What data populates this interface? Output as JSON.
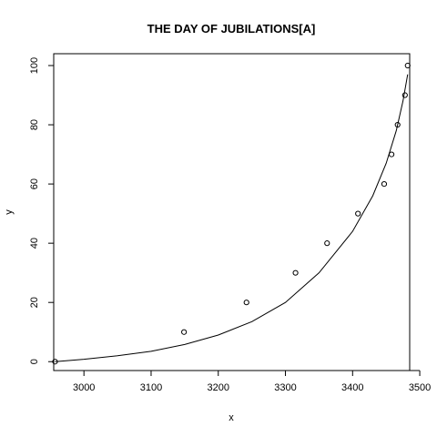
{
  "chart_data": {
    "type": "scatter",
    "title": "THE DAY OF JUBILATIONS[A]",
    "xlabel": "x",
    "ylabel": "y",
    "xlim": [
      2955,
      3485
    ],
    "ylim": [
      -3,
      104
    ],
    "xticks": [
      3000,
      3100,
      3200,
      3300,
      3400,
      3500
    ],
    "yticks": [
      0,
      20,
      40,
      60,
      80,
      100
    ],
    "grid": false,
    "points": {
      "x": [
        2957,
        3149,
        3242,
        3315,
        3362,
        3408,
        3447,
        3458,
        3467,
        3478,
        3482
      ],
      "y": [
        0,
        10,
        20,
        30,
        40,
        50,
        60,
        70,
        80,
        90,
        100
      ]
    },
    "fit_curve": {
      "x": [
        2957,
        3000,
        3050,
        3100,
        3150,
        3200,
        3250,
        3300,
        3350,
        3400,
        3430,
        3450,
        3465,
        3475,
        3482
      ],
      "y": [
        0,
        0.8,
        2,
        3.5,
        5.8,
        9,
        13.5,
        20,
        30,
        44,
        56,
        67,
        78,
        88,
        97
      ]
    }
  }
}
